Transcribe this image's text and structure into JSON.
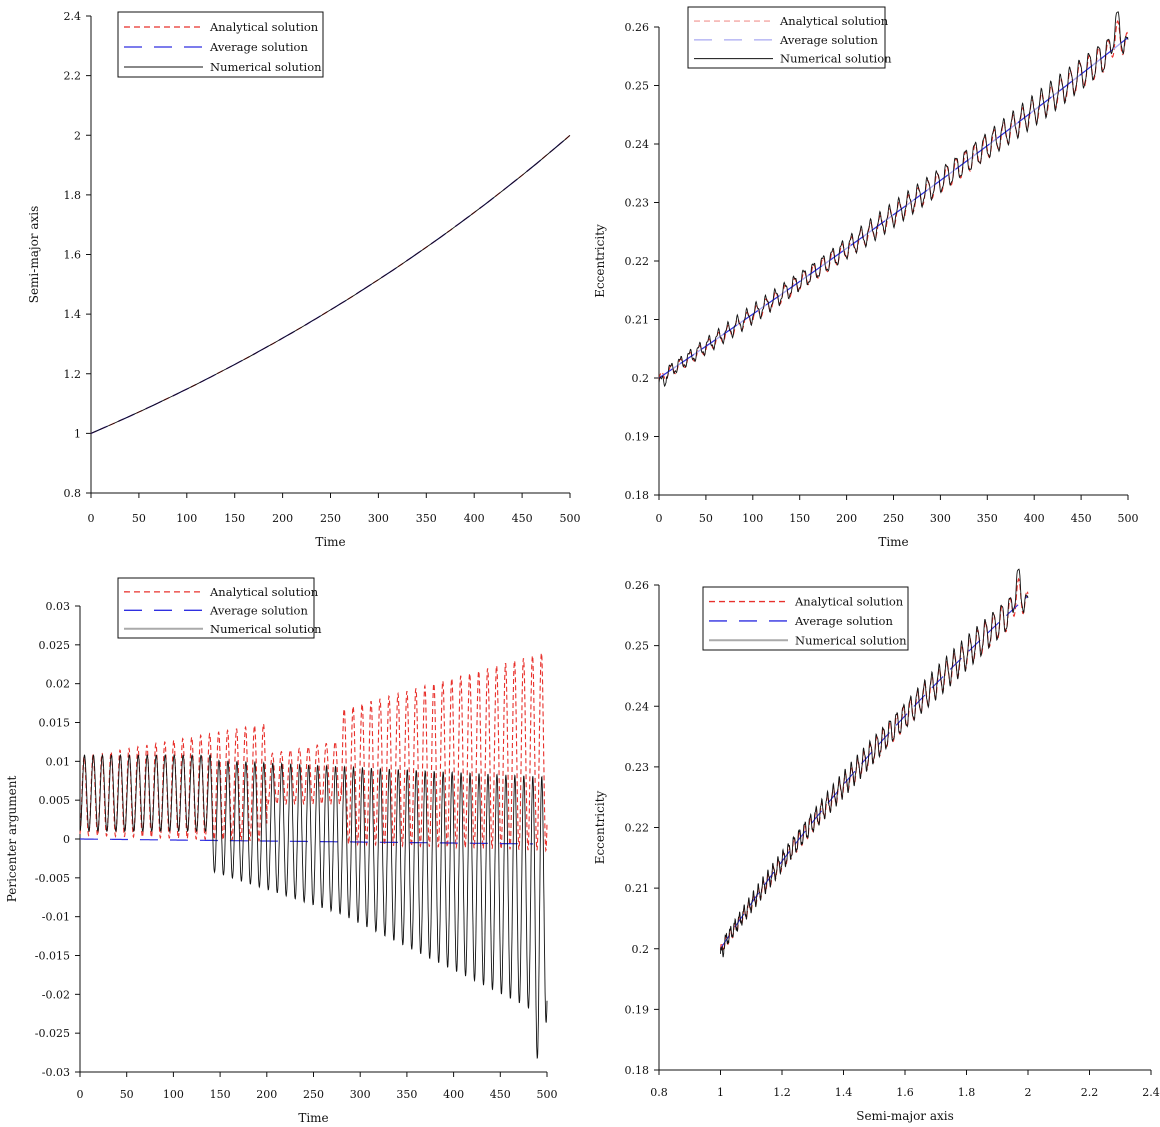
{
  "legend_labels": [
    "Analytical solution",
    "Average solution",
    "Numerical solution"
  ],
  "colors": {
    "analytical": "#e8302b",
    "average": "#2f2fe0",
    "numerical": "#111111",
    "analytical_light": "#f4a6a3",
    "average_light": "#a9a9f2",
    "numerical_grey": "#aaaaaa"
  },
  "chart_data": [
    {
      "type": "line",
      "xlabel": "Time",
      "ylabel": "Semi-major axis",
      "xlim": [
        0,
        500
      ],
      "ylim": [
        0.8,
        2.4
      ],
      "xticks": [
        "0",
        "50",
        "100",
        "150",
        "200",
        "250",
        "300",
        "350",
        "400",
        "450",
        "500"
      ],
      "yticks": [
        "0.8",
        "1",
        "1.2",
        "1.4",
        "1.6",
        "1.8",
        "2",
        "2.2",
        "2.4"
      ],
      "legend_position": "top-left",
      "series": [
        {
          "name": "Analytical solution",
          "x": [
            0,
            50,
            100,
            150,
            200,
            250,
            300,
            350,
            400,
            450,
            500
          ],
          "y": [
            1.0,
            1.06,
            1.12,
            1.2,
            1.28,
            1.37,
            1.47,
            1.59,
            1.71,
            1.85,
            2.0
          ]
        },
        {
          "name": "Average solution",
          "x": [
            0,
            50,
            100,
            150,
            200,
            250,
            300,
            350,
            400,
            450,
            500
          ],
          "y": [
            1.0,
            1.06,
            1.12,
            1.2,
            1.28,
            1.37,
            1.47,
            1.59,
            1.71,
            1.85,
            2.0
          ]
        },
        {
          "name": "Numerical solution",
          "x": [
            0,
            50,
            100,
            150,
            200,
            250,
            300,
            350,
            400,
            450,
            500
          ],
          "y": [
            1.0,
            1.06,
            1.12,
            1.2,
            1.28,
            1.37,
            1.47,
            1.59,
            1.71,
            1.85,
            2.0
          ]
        }
      ]
    },
    {
      "type": "line",
      "xlabel": "Time",
      "ylabel": "Eccentricity",
      "xlim": [
        0,
        500
      ],
      "ylim": [
        0.18,
        0.26
      ],
      "xticks": [
        "0",
        "50",
        "100",
        "150",
        "200",
        "250",
        "300",
        "350",
        "400",
        "450",
        "500"
      ],
      "yticks": [
        "0.18",
        "0.19",
        "0.2",
        "0.21",
        "0.22",
        "0.23",
        "0.24",
        "0.25",
        "0.26"
      ],
      "legend_position": "top-left",
      "series": [
        {
          "name": "Analytical solution",
          "x": [
            0,
            50,
            100,
            150,
            200,
            250,
            300,
            350,
            400,
            450,
            500
          ],
          "y": [
            0.2,
            0.204,
            0.208,
            0.212,
            0.217,
            0.222,
            0.228,
            0.233,
            0.239,
            0.246,
            0.251
          ]
        },
        {
          "name": "Average solution",
          "x": [
            0,
            50,
            100,
            150,
            200,
            250,
            300,
            350,
            400,
            450,
            500
          ],
          "y": [
            0.2,
            0.204,
            0.208,
            0.212,
            0.217,
            0.222,
            0.228,
            0.233,
            0.239,
            0.246,
            0.254
          ]
        },
        {
          "name": "Numerical solution",
          "x": [
            0,
            50,
            100,
            150,
            200,
            250,
            300,
            350,
            400,
            450,
            490,
            500
          ],
          "y": [
            0.199,
            0.204,
            0.208,
            0.213,
            0.218,
            0.223,
            0.229,
            0.234,
            0.24,
            0.247,
            0.257,
            0.251
          ]
        }
      ]
    },
    {
      "type": "line",
      "xlabel": "Time",
      "ylabel": "Pericenter argument",
      "xlim": [
        0,
        500
      ],
      "ylim": [
        -0.03,
        0.03
      ],
      "xticks": [
        "0",
        "50",
        "100",
        "150",
        "200",
        "250",
        "300",
        "350",
        "400",
        "450",
        "500"
      ],
      "yticks": [
        "-0.03",
        "-0.025",
        "-0.02",
        "-0.015",
        "-0.01",
        "-0.005",
        "0",
        "0.005",
        "0.01",
        "0.015",
        "0.02",
        "0.025",
        "0.03"
      ],
      "legend_position": "top-center",
      "series": [
        {
          "name": "Analytical solution",
          "x": [
            0,
            100,
            200,
            300,
            400,
            490
          ],
          "y_peak": [
            0.011,
            0.012,
            0.013,
            0.016,
            0.019,
            0.021
          ],
          "y_trough": [
            0.0,
            -0.002,
            -0.003,
            -0.002,
            -0.001,
            -0.001
          ]
        },
        {
          "name": "Average solution",
          "x": [
            0,
            100,
            200,
            300,
            400,
            480
          ],
          "y": [
            0.0,
            0.0,
            -0.0003,
            -0.0004,
            -0.0005,
            -0.0006
          ]
        },
        {
          "name": "Numerical solution",
          "x": [
            0,
            100,
            200,
            300,
            400,
            480
          ],
          "y_peak": [
            0.011,
            0.011,
            0.01,
            0.009,
            0.008,
            0.008
          ],
          "y_trough": [
            0.001,
            -0.003,
            -0.006,
            -0.011,
            -0.016,
            -0.025
          ]
        }
      ]
    },
    {
      "type": "line",
      "xlabel": "Semi-major axis",
      "ylabel": "Eccentricity",
      "xlim": [
        0.8,
        2.4
      ],
      "ylim": [
        0.18,
        0.26
      ],
      "xticks": [
        "0.8",
        "1",
        "1.2",
        "1.4",
        "1.6",
        "1.8",
        "2",
        "2.2",
        "2.4"
      ],
      "yticks": [
        "0.18",
        "0.19",
        "0.2",
        "0.21",
        "0.22",
        "0.23",
        "0.24",
        "0.25",
        "0.26"
      ],
      "legend_position": "top-left",
      "series": [
        {
          "name": "Analytical solution",
          "x": [
            1.0,
            1.2,
            1.4,
            1.6,
            1.8,
            2.0
          ],
          "y": [
            0.2,
            0.214,
            0.226,
            0.236,
            0.245,
            0.25
          ]
        },
        {
          "name": "Average solution",
          "x": [
            1.0,
            1.2,
            1.4,
            1.6,
            1.8,
            2.0
          ],
          "y": [
            0.2,
            0.214,
            0.226,
            0.236,
            0.245,
            0.254
          ]
        },
        {
          "name": "Numerical solution",
          "x": [
            1.0,
            1.2,
            1.4,
            1.6,
            1.8,
            1.97,
            2.0
          ],
          "y": [
            0.199,
            0.215,
            0.227,
            0.237,
            0.246,
            0.257,
            0.251
          ]
        }
      ]
    }
  ]
}
